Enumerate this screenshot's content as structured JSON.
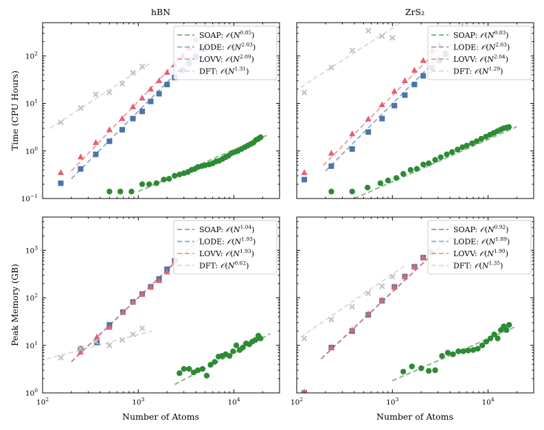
{
  "figure": {
    "ylabel_top": "Time (CPU Hours)",
    "ylabel_bottom": "Peak Memory (GB)",
    "xlabel": "Number of Atoms",
    "columns": [
      "hBN",
      "ZrS₂"
    ]
  },
  "colors": {
    "SOAP": "#2e8b35",
    "LODE": "#4a76a8",
    "LOVV": "#e26271",
    "DFT": "#c3c3c3"
  },
  "icons": {
    "SOAP": "circle-marker-icon",
    "LODE": "square-marker-icon",
    "LOVV": "triangle-marker-icon",
    "DFT": "cross-marker-icon"
  },
  "x_ticks": [
    {
      "value": 100,
      "base": "10",
      "exp": "2"
    },
    {
      "value": 1000,
      "base": "10",
      "exp": "3"
    },
    {
      "value": 10000,
      "base": "10",
      "exp": "4"
    }
  ],
  "chart_data": [
    {
      "type": "scatter",
      "log_x": true,
      "log_y": true,
      "title": "hBN",
      "xlabel": "",
      "ylabel": "Time (CPU Hours)",
      "xlim": [
        100,
        30000
      ],
      "ylim": [
        0.1,
        500
      ],
      "y_ticks": [
        {
          "value": 0.1,
          "base": "10",
          "exp": "−1"
        },
        {
          "value": 1,
          "base": "10",
          "exp": "0"
        },
        {
          "value": 10,
          "base": "10",
          "exp": "1"
        },
        {
          "value": 100,
          "base": "10",
          "exp": "2"
        }
      ],
      "legend": [
        {
          "name": "SOAP",
          "exp": "0.85"
        },
        {
          "name": "LODE",
          "exp": "2.03"
        },
        {
          "name": "LOVV",
          "exp": "2.09"
        },
        {
          "name": "DFT",
          "exp": "1.31"
        }
      ],
      "series": [
        {
          "name": "SOAP",
          "fit": {
            "x": [
              1000,
              22000
            ],
            "y": [
              0.14,
              2.13
            ]
          },
          "x": [
            500,
            650,
            850,
            1100,
            1300,
            1550,
            1850,
            2100,
            2400,
            2700,
            3000,
            3300,
            3600,
            3900,
            4200,
            4600,
            5000,
            5500,
            6000,
            6500,
            7000,
            7600,
            8200,
            8800,
            9500,
            10200,
            11000,
            12000,
            13000,
            14000,
            15000,
            16000,
            17000,
            18000,
            19000
          ],
          "y": [
            0.14,
            0.14,
            0.14,
            0.2,
            0.2,
            0.21,
            0.25,
            0.26,
            0.3,
            0.32,
            0.34,
            0.36,
            0.4,
            0.42,
            0.46,
            0.48,
            0.5,
            0.52,
            0.55,
            0.6,
            0.62,
            0.68,
            0.74,
            0.8,
            0.9,
            0.95,
            1.0,
            1.1,
            1.2,
            1.3,
            1.4,
            1.5,
            1.7,
            1.8,
            1.95
          ]
        },
        {
          "name": "LODE",
          "fit": {
            "x": [
              200,
              5500
            ],
            "y": [
              0.26,
              216
            ]
          },
          "x": [
            155,
            250,
            360,
            500,
            680,
            880,
            1100,
            1350,
            1650,
            2000,
            2400,
            2900,
            3400,
            4000,
            4700
          ],
          "y": [
            0.21,
            0.42,
            0.85,
            1.6,
            2.8,
            4.8,
            6.8,
            11,
            16,
            25,
            35,
            50,
            70,
            95,
            140
          ]
        },
        {
          "name": "LOVV",
          "fit": {
            "x": [
              200,
              5500
            ],
            "y": [
              0.38,
              389
            ]
          },
          "x": [
            155,
            250,
            360,
            500,
            680,
            880,
            1100,
            1350,
            1650,
            2000,
            2400,
            2900,
            3400,
            4000
          ],
          "y": [
            0.35,
            0.75,
            1.5,
            2.8,
            4.8,
            8.5,
            13,
            20,
            30,
            45,
            65,
            100,
            145,
            220
          ]
        },
        {
          "name": "DFT",
          "fit": {
            "x": [
              120,
              1300
            ],
            "y": [
              3.0,
              68
            ]
          },
          "x": [
            155,
            250,
            360,
            500,
            680,
            880,
            1100
          ],
          "y": [
            4.0,
            8.0,
            15.5,
            17,
            26,
            44,
            60
          ]
        }
      ]
    },
    {
      "type": "scatter",
      "log_x": true,
      "log_y": true,
      "title": "ZrS₂",
      "xlabel": "",
      "ylabel": "",
      "xlim": [
        100,
        30000
      ],
      "ylim": [
        0.1,
        500
      ],
      "y_ticks": [],
      "legend": [
        {
          "name": "SOAP",
          "exp": "0.83"
        },
        {
          "name": "LODE",
          "exp": "2.03"
        },
        {
          "name": "LOVV",
          "exp": "2.04"
        },
        {
          "name": "DFT",
          "exp": "1.29"
        }
      ],
      "series": [
        {
          "name": "SOAP",
          "fit": {
            "x": [
              400,
              20000
            ],
            "y": [
              0.1,
              3.24
            ]
          },
          "x": [
            230,
            380,
            550,
            750,
            900,
            1100,
            1300,
            1550,
            1800,
            2100,
            2400,
            2800,
            3200,
            3700,
            4200,
            4800,
            5400,
            6000,
            6800,
            7600,
            8500,
            9500,
            10500,
            11500,
            12500,
            13500,
            14500,
            15500,
            16500
          ],
          "y": [
            0.14,
            0.14,
            0.17,
            0.21,
            0.24,
            0.27,
            0.33,
            0.4,
            0.42,
            0.52,
            0.55,
            0.65,
            0.74,
            0.85,
            0.95,
            1.07,
            1.2,
            1.3,
            1.45,
            1.6,
            1.8,
            2.0,
            2.2,
            2.4,
            2.6,
            2.8,
            3.0,
            3.1,
            3.2
          ]
        },
        {
          "name": "LODE",
          "fit": {
            "x": [
              200,
              5500
            ],
            "y": [
              0.38,
              310
            ]
          },
          "x": [
            120,
            230,
            380,
            560,
            780,
            1050,
            1350,
            1700,
            2100,
            2600,
            3100,
            3600
          ],
          "y": [
            0.25,
            0.48,
            1.1,
            2.5,
            4.8,
            9,
            15,
            25,
            38,
            56,
            80,
            110
          ]
        },
        {
          "name": "LOVV",
          "fit": {
            "x": [
              190,
              5500
            ],
            "y": [
              0.5,
              470
            ]
          },
          "x": [
            120,
            230,
            380,
            560,
            780,
            1050,
            1350,
            1700,
            2100,
            2600,
            3100
          ],
          "y": [
            0.35,
            0.9,
            2.3,
            4.7,
            9.4,
            18,
            30,
            50,
            80,
            130,
            170
          ]
        },
        {
          "name": "DFT",
          "fit": {
            "x": [
              110,
              1400
            ],
            "y": [
              22,
              590
            ]
          },
          "x": [
            120,
            230,
            380,
            560,
            780,
            1000
          ],
          "y": [
            17,
            57,
            130,
            340,
            260,
            240
          ]
        }
      ]
    },
    {
      "type": "scatter",
      "log_x": true,
      "log_y": true,
      "title": "",
      "xlabel": "Number of Atoms",
      "ylabel": "Peak Memory (GB)",
      "xlim": [
        100,
        30000
      ],
      "ylim": [
        1,
        5000
      ],
      "y_ticks": [
        {
          "value": 1,
          "base": "10",
          "exp": "0"
        },
        {
          "value": 10,
          "base": "10",
          "exp": "1"
        },
        {
          "value": 100,
          "base": "10",
          "exp": "2"
        },
        {
          "value": 1000,
          "base": "10",
          "exp": "3"
        }
      ],
      "legend": [
        {
          "name": "SOAP",
          "exp": "1.04"
        },
        {
          "name": "LODE",
          "exp": "1.93"
        },
        {
          "name": "LOVV",
          "exp": "1.93"
        },
        {
          "name": "DFT",
          "exp": "0.62"
        }
      ],
      "series": [
        {
          "name": "SOAP",
          "fit": {
            "x": [
              2400,
              24000
            ],
            "y": [
              1.5,
              17.5
            ]
          },
          "x": [
            2700,
            3000,
            3400,
            3800,
            4200,
            4700,
            5200,
            5700,
            6300,
            6900,
            7500,
            8200,
            9000,
            9800,
            10600,
            11500,
            12400,
            13400,
            14500,
            15600,
            16800,
            18000,
            19000
          ],
          "y": [
            2.6,
            3.2,
            3.2,
            2.7,
            3.0,
            3.2,
            2.3,
            3.9,
            4.5,
            5.8,
            6.0,
            6.5,
            6.0,
            7.5,
            10,
            8.0,
            9.0,
            11,
            10.5,
            12,
            13,
            16,
            14
          ]
        },
        {
          "name": "LODE",
          "fit": {
            "x": [
              200,
              5500
            ],
            "y": [
              4.5,
              2700
            ]
          },
          "x": [
            250,
            370,
            500,
            690,
            880,
            1100,
            1350,
            1650,
            2000,
            2400
          ],
          "y": [
            8.5,
            11.5,
            27,
            50,
            82,
            120,
            170,
            250,
            400,
            600
          ]
        },
        {
          "name": "LOVV",
          "fit": {
            "x": [
              200,
              5500
            ],
            "y": [
              4.5,
              2700
            ]
          },
          "x": [
            250,
            370,
            500,
            690,
            880,
            1100,
            1350,
            1650,
            2000,
            2400
          ],
          "y": [
            7.2,
            15,
            24,
            50,
            82,
            120,
            170,
            230,
            350,
            600
          ]
        },
        {
          "name": "DFT",
          "fit": {
            "x": [
              110,
              1400
            ],
            "y": [
              5.2,
              20
            ]
          },
          "x": [
            155,
            250,
            360,
            500,
            680,
            880,
            1100
          ],
          "y": [
            5.5,
            8.5,
            12,
            10,
            13,
            17,
            23
          ]
        }
      ]
    },
    {
      "type": "scatter",
      "log_x": true,
      "log_y": true,
      "title": "",
      "xlabel": "Number of Atoms",
      "ylabel": "",
      "xlim": [
        100,
        30000
      ],
      "ylim": [
        1,
        5000
      ],
      "y_ticks": [],
      "legend": [
        {
          "name": "SOAP",
          "exp": "0.92"
        },
        {
          "name": "LODE",
          "exp": "1.89"
        },
        {
          "name": "LOVV",
          "exp": "1.90"
        },
        {
          "name": "DFT",
          "exp": "1.35"
        }
      ],
      "series": [
        {
          "name": "SOAP",
          "fit": {
            "x": [
              1000,
              20000
            ],
            "y": [
              1.8,
              25.5
            ]
          },
          "x": [
            1300,
            1600,
            2000,
            2400,
            2800,
            3300,
            3800,
            4300,
            4900,
            5500,
            6200,
            7000,
            7800,
            8700,
            9600,
            10600,
            11600,
            12600,
            13600,
            14600,
            15600,
            16600
          ],
          "y": [
            2.8,
            3.6,
            3.3,
            2.9,
            3.0,
            6.0,
            7.0,
            6.5,
            7.5,
            7.5,
            7.8,
            8.0,
            8.5,
            10,
            12,
            14,
            17,
            14,
            21,
            25,
            21,
            27
          ]
        },
        {
          "name": "LODE",
          "fit": {
            "x": [
              180,
              5000
            ],
            "y": [
              5.2,
              2800
            ]
          },
          "x": [
            120,
            230,
            380,
            560,
            780,
            1050,
            1350,
            1700,
            2100,
            2500
          ],
          "y": [
            1.0,
            9,
            20,
            44,
            87,
            170,
            280,
            450,
            700,
            900
          ]
        },
        {
          "name": "LOVV",
          "fit": {
            "x": [
              180,
              5000
            ],
            "y": [
              5.2,
              2800
            ]
          },
          "x": [
            120,
            230,
            380,
            560,
            780,
            1050,
            1350,
            1700,
            2100,
            2500
          ],
          "y": [
            1.05,
            9,
            21,
            46,
            90,
            170,
            280,
            450,
            700,
            900
          ]
        },
        {
          "name": "DFT",
          "fit": {
            "x": [
              110,
              1400
            ],
            "y": [
              15,
              500
            ]
          },
          "x": [
            120,
            230,
            380,
            560,
            780,
            1000
          ],
          "y": [
            14,
            35,
            65,
            125,
            175,
            280
          ]
        }
      ]
    }
  ]
}
